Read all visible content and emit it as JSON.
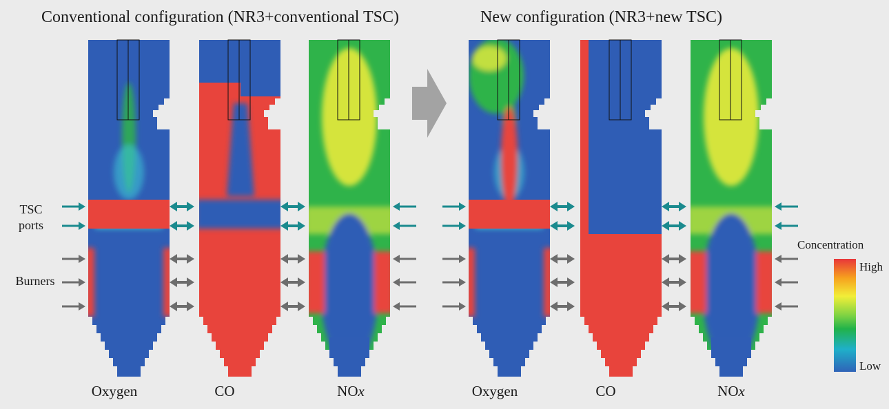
{
  "titles": {
    "conventional": "Conventional configuration (NR3+conventional TSC)",
    "new": "New configuration (NR3+new TSC)"
  },
  "side_labels": {
    "tsc_line1": "TSC",
    "tsc_line2": "ports",
    "burners": "Burners"
  },
  "panels": [
    {
      "group": "conventional",
      "species": "Oxygen",
      "label": "Oxygen"
    },
    {
      "group": "conventional",
      "species": "CO",
      "label": "CO"
    },
    {
      "group": "conventional",
      "species": "NOx",
      "label_main": "NO",
      "label_sub": "x"
    },
    {
      "group": "new",
      "species": "Oxygen",
      "label": "Oxygen"
    },
    {
      "group": "new",
      "species": "CO",
      "label": "CO"
    },
    {
      "group": "new",
      "species": "NOx",
      "label_main": "NO",
      "label_sub": "x"
    }
  ],
  "colorbar": {
    "title": "Concentration",
    "high": "High",
    "low": "Low",
    "colors": [
      "#e8363a",
      "#f6a21e",
      "#f2ee38",
      "#7fd343",
      "#21b24a",
      "#1fb0c9",
      "#2f63b8"
    ]
  },
  "palette": {
    "red": "#e8443c",
    "blue": "#2f5db5",
    "green": "#2fb34a",
    "yellow": "#e7ea3c",
    "cyan": "#3cc3d3",
    "teal_arrow": "#1a8a8e",
    "grey_arrow": "#6d6d6d",
    "big_arrow": "#a3a3a3"
  }
}
